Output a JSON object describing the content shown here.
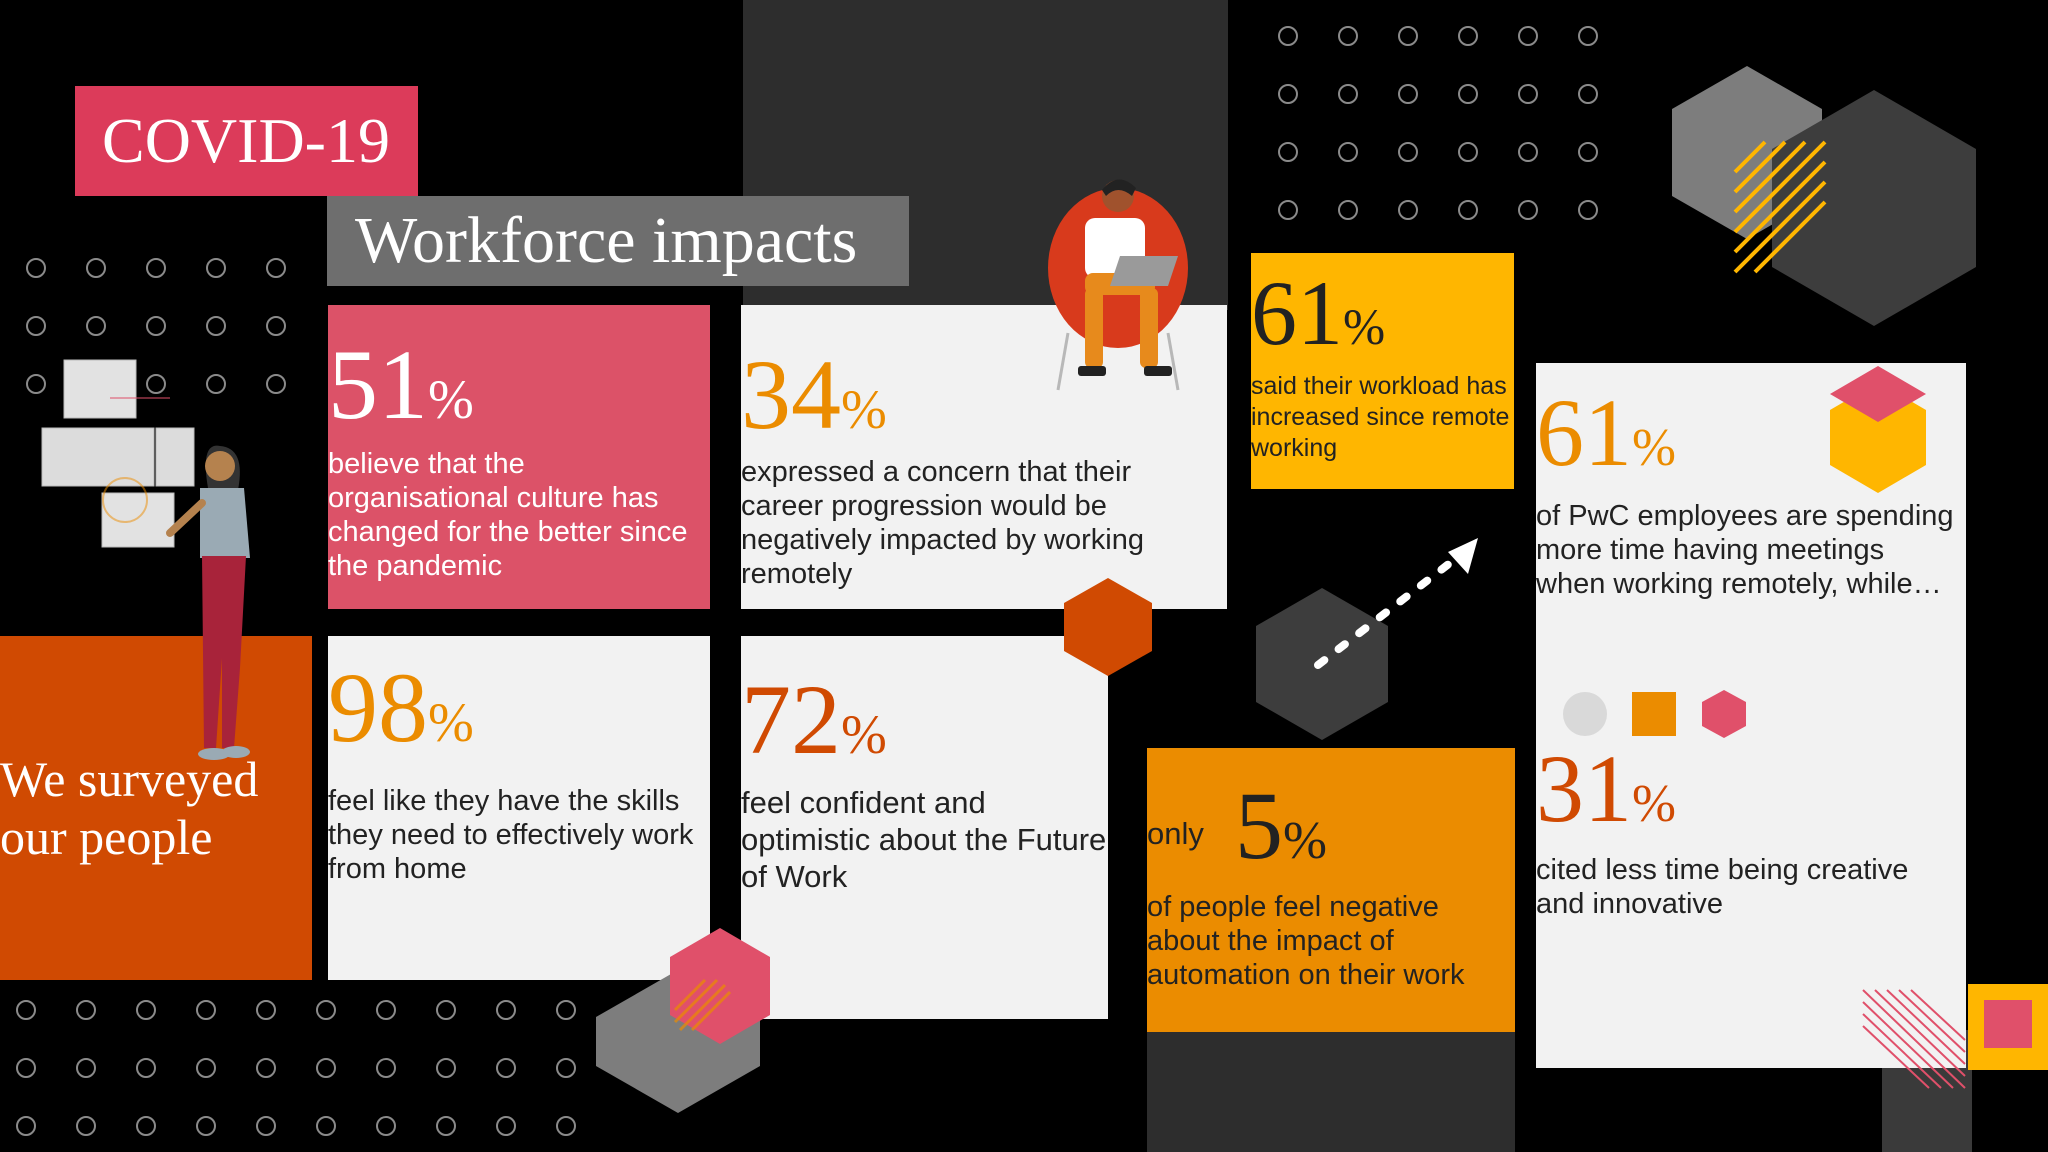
{
  "header": {
    "tag": "COVID-19",
    "title": "Workforce impacts"
  },
  "intro": {
    "text_line1": "We surveyed",
    "text_line2": "our people"
  },
  "stats": [
    {
      "value": "51",
      "unit": "%",
      "text": "believe that the organisational culture has changed for the better since the pandemic",
      "bg": "#dc5268"
    },
    {
      "value": "34",
      "unit": "%",
      "text": "expressed a concern that their career progression would be negatively impacted by working remotely",
      "bg": "#f2f2f2"
    },
    {
      "value": "98",
      "unit": "%",
      "text": "feel like they have the skills they need to effectively work from home",
      "bg": "#f2f2f2"
    },
    {
      "value": "72",
      "unit": "%",
      "text": "feel confident and optimistic about the Future of Work",
      "bg": "#f2f2f2"
    },
    {
      "value": "61",
      "unit": "%",
      "text": "said their workload has increased since remote working",
      "bg": "#ffb600"
    },
    {
      "prefix": "only",
      "value": "5",
      "unit": "%",
      "text": "of people feel negative about the impact of automation on their work",
      "bg": "#eb8c00"
    },
    {
      "value": "61",
      "unit": "%",
      "text": "of PwC employees are spending more time having meetings when working remotely, while…",
      "bg": "#f2f2f2"
    },
    {
      "value": "31",
      "unit": "%",
      "text": "cited less time being creative and innovative",
      "bg": "#f2f2f2"
    }
  ],
  "colors": {
    "red_tag": "#dc3b5a",
    "grey_title": "#6e6e6e",
    "orange_dark": "#d04a02",
    "orange": "#eb8c00",
    "yellow": "#ffb600",
    "pink": "#e0506a",
    "card": "#f2f2f2"
  },
  "icons": [
    "person-with-laptop-icon",
    "woman-with-screens-icon",
    "arrow-icon",
    "hexagon-icon"
  ]
}
